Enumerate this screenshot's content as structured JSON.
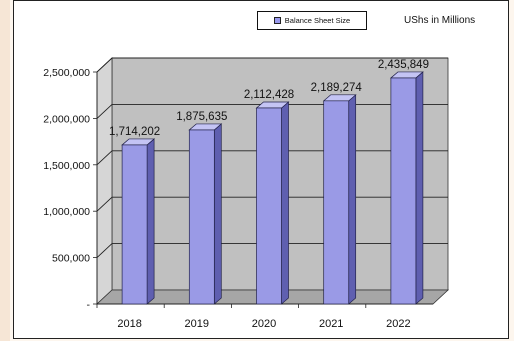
{
  "legend": {
    "label": "Balance Sheet Size"
  },
  "unit_label": "UShs in Millions",
  "colors": {
    "bar_front": "#9a9ae6",
    "bar_side": "#5f5fb0",
    "bar_top": "#c4c4f4",
    "wall": "#c0c0c0",
    "wall_top": "#d6d6d6",
    "floor": "#a6a6a6",
    "grid": "#222222"
  },
  "chart_data": {
    "type": "bar",
    "categories": [
      "2018",
      "2019",
      "2020",
      "2021",
      "2022"
    ],
    "series": [
      {
        "name": "Balance Sheet Size",
        "values": [
          1714202,
          1875635,
          2112428,
          2189274,
          2435849
        ]
      }
    ],
    "value_labels": [
      "1,714,202",
      "1,875,635",
      "2,112,428",
      "2,189,274",
      "2,435,849"
    ],
    "ylim": [
      0,
      2500000
    ],
    "yticks": [
      0,
      500000,
      1000000,
      1500000,
      2000000,
      2500000
    ],
    "ytick_labels": [
      "-",
      "500,000",
      "1,000,000",
      "1,500,000",
      "2,000,000",
      "2,500,000"
    ],
    "legend_position": "top",
    "grid": true,
    "three_d": true
  }
}
